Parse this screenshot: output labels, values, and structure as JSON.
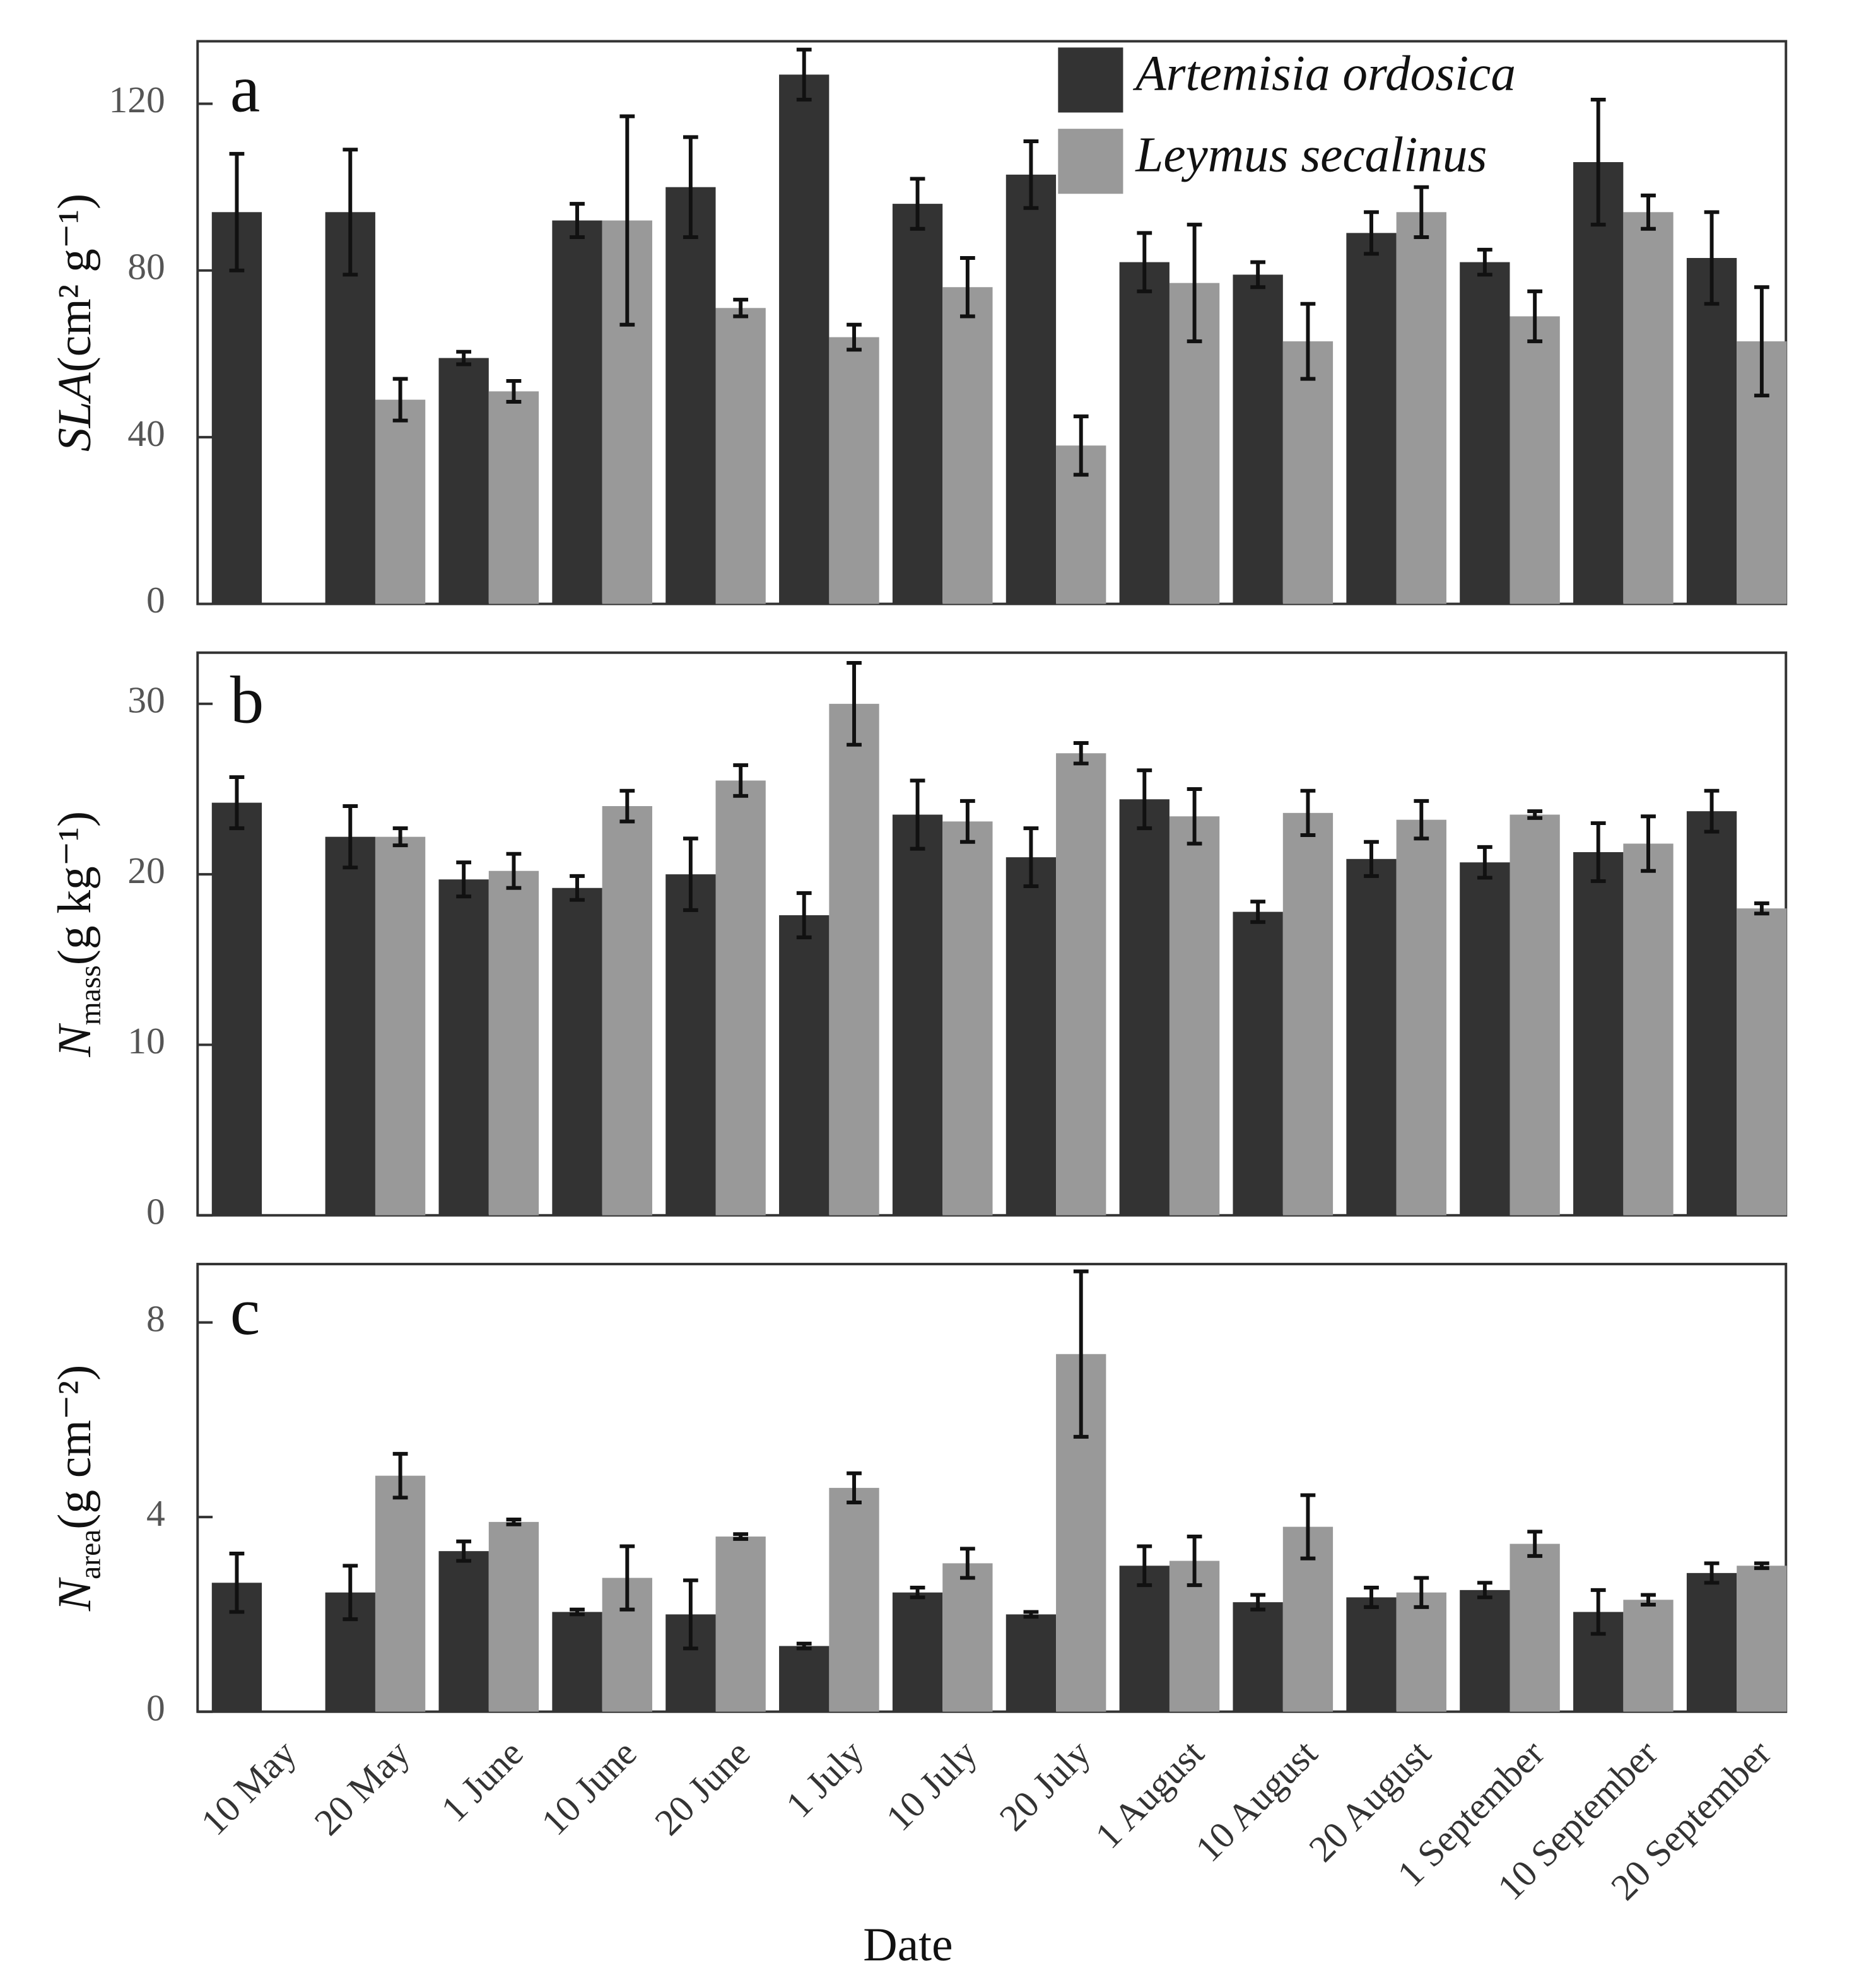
{
  "chart_data": [
    {
      "type": "bar",
      "panel_label": "a",
      "ylabel": {
        "symbol": "SLA",
        "unit": "(cm² g⁻¹)"
      },
      "categories": [
        "10 May",
        "20 May",
        "1 June",
        "10 June",
        "20 June",
        "1 July",
        "10 July",
        "20 July",
        "1 August",
        "10 August",
        "20 August",
        "1 September",
        "10 September",
        "20 September"
      ],
      "series": [
        {
          "name": "Artemisia ordosica",
          "color": "#333333",
          "values": [
            94,
            94,
            59,
            92,
            100,
            127,
            96,
            103,
            82,
            79,
            89,
            82,
            106,
            83
          ],
          "errors": [
            14,
            15,
            1.5,
            4,
            12,
            6,
            6,
            8,
            7,
            3,
            5,
            3,
            15,
            11
          ]
        },
        {
          "name": "Leymus secalinus",
          "color": "#999999",
          "values": [
            null,
            49,
            51,
            92,
            71,
            64,
            76,
            38,
            77,
            63,
            94,
            69,
            94,
            63
          ],
          "errors": [
            null,
            5,
            2.5,
            25,
            2,
            3,
            7,
            7,
            14,
            9,
            6,
            6,
            4,
            13
          ]
        }
      ],
      "ylim": [
        0,
        135
      ],
      "yticks": [
        0,
        40,
        80,
        120
      ],
      "legend": "top-right"
    },
    {
      "type": "bar",
      "panel_label": "b",
      "ylabel": {
        "symbol": "N",
        "subscript": "mass",
        "unit": "(g kg⁻¹)"
      },
      "categories": [
        "10 May",
        "20 May",
        "1 June",
        "10 June",
        "20 June",
        "1 July",
        "10 July",
        "20 July",
        "1 August",
        "10 August",
        "20 August",
        "1 September",
        "10 September",
        "20 September"
      ],
      "series": [
        {
          "name": "Artemisia ordosica",
          "color": "#333333",
          "values": [
            24.2,
            22.2,
            19.7,
            19.2,
            20.0,
            17.6,
            23.5,
            21.0,
            24.4,
            17.8,
            20.9,
            20.7,
            21.3,
            23.7
          ],
          "errors": [
            1.5,
            1.8,
            1,
            0.7,
            2.1,
            1.3,
            2,
            1.7,
            1.7,
            0.6,
            1,
            0.9,
            1.7,
            1.2
          ]
        },
        {
          "name": "Leymus secalinus",
          "color": "#999999",
          "values": [
            null,
            22.2,
            20.2,
            24.0,
            25.5,
            30.0,
            23.1,
            27.1,
            23.4,
            23.6,
            23.2,
            23.5,
            21.8,
            18.0
          ],
          "errors": [
            null,
            0.5,
            1,
            0.9,
            0.9,
            2.4,
            1.2,
            0.6,
            1.6,
            1.3,
            1.1,
            0.2,
            1.6,
            0.3
          ]
        }
      ],
      "ylim": [
        0,
        33
      ],
      "yticks": [
        0,
        10,
        20,
        30
      ]
    },
    {
      "type": "bar",
      "panel_label": "c",
      "ylabel": {
        "symbol": "N",
        "subscript": "area",
        "unit": "(g cm⁻²)"
      },
      "xlabel": "Date",
      "categories": [
        "10 May",
        "20 May",
        "1 June",
        "10 June",
        "20 June",
        "1 July",
        "10 July",
        "20 July",
        "1 August",
        "10 August",
        "20 August",
        "1 September",
        "10 September",
        "20 September"
      ],
      "series": [
        {
          "name": "Artemisia ordosica",
          "color": "#333333",
          "values": [
            2.65,
            2.45,
            3.3,
            2.05,
            2.0,
            1.35,
            2.45,
            2.0,
            3.0,
            2.25,
            2.35,
            2.5,
            2.05,
            2.85
          ],
          "errors": [
            0.6,
            0.55,
            0.2,
            0.05,
            0.7,
            0.05,
            0.1,
            0.05,
            0.4,
            0.15,
            0.2,
            0.15,
            0.45,
            0.2
          ]
        },
        {
          "name": "Leymus secalinus",
          "color": "#999999",
          "values": [
            null,
            4.85,
            3.9,
            2.75,
            3.6,
            4.6,
            3.05,
            7.35,
            3.1,
            3.8,
            2.45,
            3.45,
            2.3,
            3.0
          ],
          "errors": [
            null,
            0.45,
            0.05,
            0.65,
            0.05,
            0.3,
            0.3,
            1.7,
            0.5,
            0.65,
            0.3,
            0.25,
            0.1,
            0.05
          ]
        }
      ],
      "ylim": [
        0,
        9.2
      ],
      "yticks": [
        0,
        4,
        8
      ],
      "show_category_labels": true
    }
  ]
}
